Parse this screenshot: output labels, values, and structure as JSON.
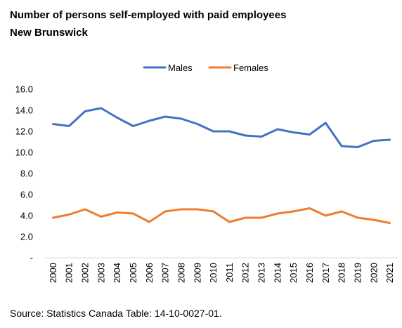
{
  "chart_data": {
    "type": "line",
    "title": "Number of persons self-employed with paid employees",
    "subtitle": "New Brunswick",
    "xlabel": "",
    "ylabel": "",
    "ylim": [
      0,
      16
    ],
    "y_ticks": [
      "-",
      "2.0",
      "4.0",
      "6.0",
      "8.0",
      "10.0",
      "12.0",
      "14.0",
      "16.0"
    ],
    "x": [
      "2000",
      "2001",
      "2002",
      "2003",
      "2004",
      "2005",
      "2006",
      "2007",
      "2008",
      "2009",
      "2010",
      "2011",
      "2012",
      "2013",
      "2014",
      "2015",
      "2016",
      "2017",
      "2018",
      "2019",
      "2020",
      "2021"
    ],
    "series": [
      {
        "name": "Males",
        "color": "#4472C4",
        "values": [
          12.7,
          12.5,
          13.9,
          14.2,
          13.3,
          12.5,
          13.0,
          13.4,
          13.2,
          12.7,
          12.0,
          12.0,
          11.6,
          11.5,
          12.2,
          11.9,
          11.7,
          12.8,
          10.6,
          10.5,
          11.1,
          11.2
        ]
      },
      {
        "name": "Females",
        "color": "#ED7D31",
        "values": [
          3.8,
          4.1,
          4.6,
          3.9,
          4.3,
          4.2,
          3.4,
          4.4,
          4.6,
          4.6,
          4.4,
          3.4,
          3.8,
          3.8,
          4.2,
          4.4,
          4.7,
          4.0,
          4.4,
          3.8,
          3.6,
          3.3
        ]
      }
    ],
    "grid": false,
    "legend_position": "top"
  },
  "source": "Source: Statistics Canada Table: 14-10-0027-01."
}
